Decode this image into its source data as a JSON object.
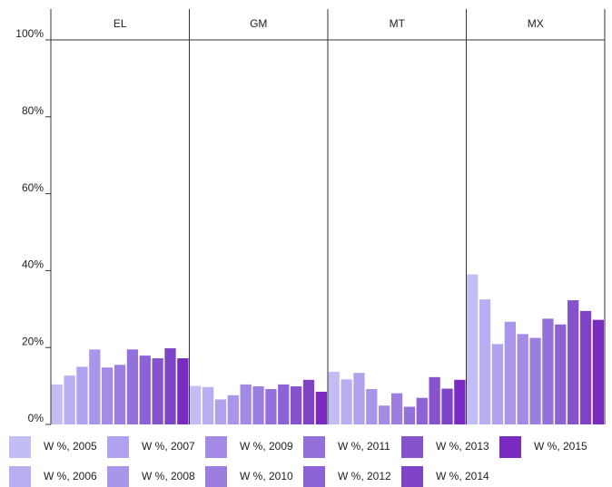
{
  "chart_data": {
    "type": "bar",
    "categories": [
      "EL",
      "GM",
      "MT",
      "MX"
    ],
    "series": [
      {
        "name": "W %, 2005",
        "color": "#c3bdf5",
        "values": [
          10.4,
          10,
          13.7,
          39
        ]
      },
      {
        "name": "W %, 2006",
        "color": "#b9aef2",
        "values": [
          12.7,
          9.7,
          11.7,
          32.5
        ]
      },
      {
        "name": "W %, 2007",
        "color": "#b0a2ee",
        "values": [
          15,
          6.5,
          13.4,
          20.9
        ]
      },
      {
        "name": "W %, 2008",
        "color": "#a996ea",
        "values": [
          19.5,
          7.6,
          9.2,
          26.7
        ]
      },
      {
        "name": "W %, 2009",
        "color": "#a28ae5",
        "values": [
          14.8,
          10.4,
          4.9,
          23.5
        ]
      },
      {
        "name": "W %, 2010",
        "color": "#9b7ee0",
        "values": [
          15.5,
          9.9,
          8.1,
          22.5
        ]
      },
      {
        "name": "W %, 2011",
        "color": "#9470da",
        "values": [
          19.5,
          9.2,
          4.6,
          27.5
        ]
      },
      {
        "name": "W %, 2012",
        "color": "#8d62d4",
        "values": [
          17.9,
          10.4,
          6.9,
          26
        ]
      },
      {
        "name": "W %, 2013",
        "color": "#8653cd",
        "values": [
          17.2,
          9.9,
          12.3,
          32.3
        ]
      },
      {
        "name": "W %, 2014",
        "color": "#7f43c7",
        "values": [
          19.8,
          11.6,
          9.3,
          29.5
        ]
      },
      {
        "name": "W %, 2015",
        "color": "#7a2ac1",
        "values": [
          17.2,
          8.5,
          11.6,
          27.2
        ]
      }
    ],
    "ylim": [
      0,
      100
    ],
    "yticks": [
      {
        "value": 0,
        "label": "0%"
      },
      {
        "value": 20,
        "label": "20%"
      },
      {
        "value": 40,
        "label": "40%"
      },
      {
        "value": 60,
        "label": "60%"
      },
      {
        "value": 80,
        "label": "80%"
      },
      {
        "value": 100,
        "label": "100%"
      }
    ],
    "legend": "bottom"
  }
}
